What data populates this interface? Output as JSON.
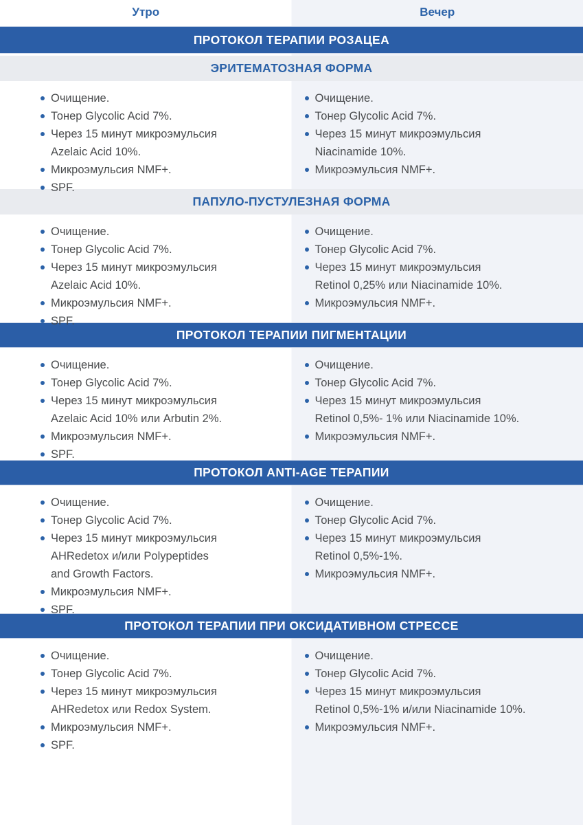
{
  "header": {
    "morning": "Утро",
    "evening": "Вечер"
  },
  "colors": {
    "band_blue": "#2B5EA7",
    "accent_blue": "#2B62A8",
    "gray_band": "#E9EBEF",
    "evening_panel": "#F1F3F8",
    "body_text": "#4A4C4E"
  },
  "protocols": {
    "rosacea": {
      "title": "ПРОТОКОЛ ТЕРАПИИ РОЗАЦЕА",
      "forms": [
        {
          "name": "ЭРИТЕМАТОЗНАЯ ФОРМА",
          "morning": [
            "Очищение.",
            "Тонер Glycolic Acid 7%.",
            "Через 15 минут микроэмульсия\nAzelaic Acid 10%.",
            "Микроэмульсия NMF+.",
            "SPF."
          ],
          "evening": [
            "Очищение.",
            "Тонер Glycolic Acid 7%.",
            "Через 15 минут микроэмульсия\nNiacinamide 10%.",
            "Микроэмульсия NMF+."
          ]
        },
        {
          "name": "ПАПУЛО-ПУСТУЛЕЗНАЯ ФОРМА",
          "morning": [
            "Очищение.",
            "Тонер Glycolic Acid 7%.",
            "Через 15 минут микроэмульсия\nAzelaic Acid 10%.",
            "Микроэмульсия NMF+.",
            "SPF."
          ],
          "evening": [
            "Очищение.",
            "Тонер Glycolic Acid 7%.",
            "Через 15 минут микроэмульсия\nRetinol 0,25% или Niacinamide 10%.",
            "Микроэмульсия NMF+."
          ]
        }
      ]
    },
    "pigmentation": {
      "title": "ПРОТОКОЛ ТЕРАПИИ ПИГМЕНТАЦИИ",
      "morning": [
        "Очищение.",
        "Тонер Glycolic Acid 7%.",
        "Через 15 минут микроэмульсия\nAzelaic Acid 10% или Arbutin 2%.",
        "Микроэмульсия NMF+.",
        "SPF."
      ],
      "evening": [
        "Очищение.",
        "Тонер Glycolic Acid 7%.",
        "Через 15 минут микроэмульсия\nRetinol 0,5%- 1% или Niacinamide 10%.",
        "Микроэмульсия NMF+."
      ]
    },
    "anti_age": {
      "title": "ПРОТОКОЛ ANTI-AGE ТЕРАПИИ",
      "morning": [
        "Очищение.",
        "Тонер Glycolic Acid 7%.",
        "Через 15 минут микроэмульсия\nAHRedetox и/или Polypeptides\nand Growth Factors.",
        "Микроэмульсия NMF+.",
        "SPF."
      ],
      "evening": [
        "Очищение.",
        "Тонер Glycolic Acid 7%.",
        "Через 15 минут микроэмульсия\nRetinol 0,5%-1%.",
        "Микроэмульсия NMF+."
      ]
    },
    "oxidative_stress": {
      "title": "ПРОТОКОЛ ТЕРАПИИ ПРИ ОКСИДАТИВНОМ СТРЕССЕ",
      "morning": [
        "Очищение.",
        "Тонер Glycolic Acid 7%.",
        "Через 15 минут микроэмульсия\nAHRedetox или Redox System.",
        "Микроэмульсия NMF+.",
        "SPF."
      ],
      "evening": [
        "Очищение.",
        "Тонер Glycolic Acid 7%.",
        "Через 15 минут микроэмульсия\nRetinol 0,5%-1% и/или Niacinamide 10%.",
        "Микроэмульсия NMF+."
      ]
    }
  }
}
